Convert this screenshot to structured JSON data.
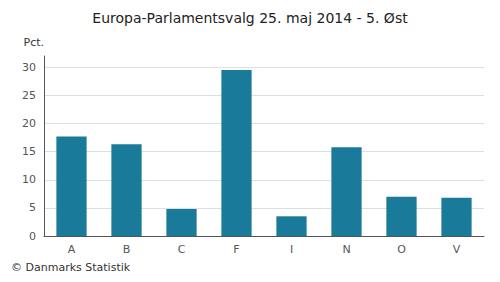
{
  "chart_data": {
    "type": "bar",
    "title": "Europa-Parlamentsvalg 25. maj 2014 - 5. Øst",
    "categories": [
      "A",
      "B",
      "C",
      "F",
      "I",
      "N",
      "O",
      "V"
    ],
    "values": [
      17.7,
      16.3,
      4.8,
      29.5,
      3.5,
      15.8,
      7.0,
      6.8
    ],
    "color": "#1a7a9a",
    "ylabel": "Pct.",
    "ylim": [
      0,
      32
    ],
    "yticks": [
      0,
      5,
      10,
      15,
      20,
      25,
      30
    ],
    "grid": true,
    "annotations": [
      "© Danmarks Statistik"
    ]
  }
}
